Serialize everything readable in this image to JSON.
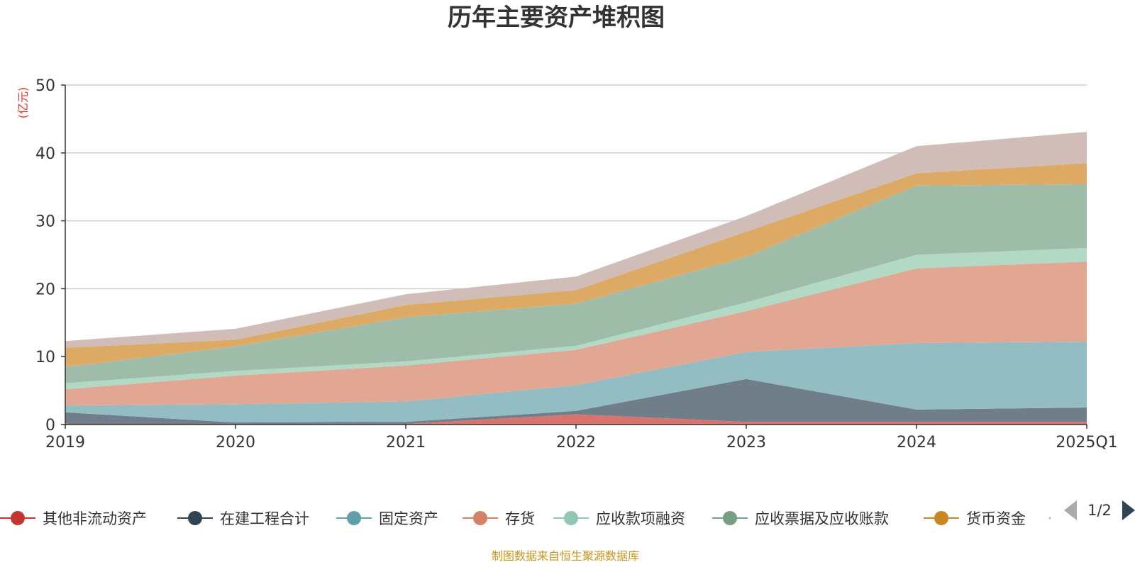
{
  "chart_data": {
    "type": "area",
    "stacked": true,
    "title": "历年主要资产堆积图",
    "unit_label": "(亿元)",
    "x": [
      "2019",
      "2020",
      "2021",
      "2022",
      "2023",
      "2024",
      "2025Q1"
    ],
    "ylim": [
      0,
      50
    ],
    "yticks": [
      0,
      10,
      20,
      30,
      40,
      50
    ],
    "grid": true,
    "legend_position": "bottom",
    "series": [
      {
        "name": "其他非流动资产",
        "color": "#c23531",
        "area_color": "#d97370",
        "values": [
          0.1,
          0.1,
          0.1,
          1.5,
          0.4,
          0.4,
          0.4
        ]
      },
      {
        "name": "在建工程合计",
        "color": "#2f4554",
        "area_color": "#6f7e88",
        "values": [
          1.7,
          0.2,
          0.3,
          0.5,
          6.3,
          1.8,
          2.1
        ]
      },
      {
        "name": "固定资产",
        "color": "#61a0a8",
        "area_color": "#93bdc2",
        "values": [
          1.0,
          2.7,
          3.0,
          3.8,
          4.0,
          9.8,
          9.7
        ]
      },
      {
        "name": "存货",
        "color": "#d48265",
        "area_color": "#e2a793",
        "values": [
          2.4,
          4.2,
          5.3,
          5.2,
          6.0,
          11.0,
          11.8
        ]
      },
      {
        "name": "应收款项融资",
        "color": "#91c7ae",
        "area_color": "#b2d8c6",
        "values": [
          0.9,
          0.7,
          0.6,
          0.6,
          1.3,
          2.0,
          2.0
        ]
      },
      {
        "name": "应收票据及应收账款",
        "color": "#749f83",
        "area_color": "#9ebca8",
        "values": [
          2.4,
          3.6,
          6.5,
          6.2,
          6.7,
          10.2,
          9.4
        ]
      },
      {
        "name": "货币资金",
        "color": "#ca8622",
        "area_color": "#dcaa64",
        "values": [
          2.8,
          1.0,
          1.8,
          2.0,
          3.7,
          1.8,
          3.1
        ]
      },
      {
        "name": "",
        "color": "#bda29a",
        "area_color": "#d0bdb8",
        "values": [
          1.0,
          1.6,
          1.6,
          2.0,
          2.3,
          4.0,
          4.6
        ]
      }
    ],
    "legend": {
      "page": "1/2"
    },
    "source": "制图数据来自恒生聚源数据库"
  }
}
